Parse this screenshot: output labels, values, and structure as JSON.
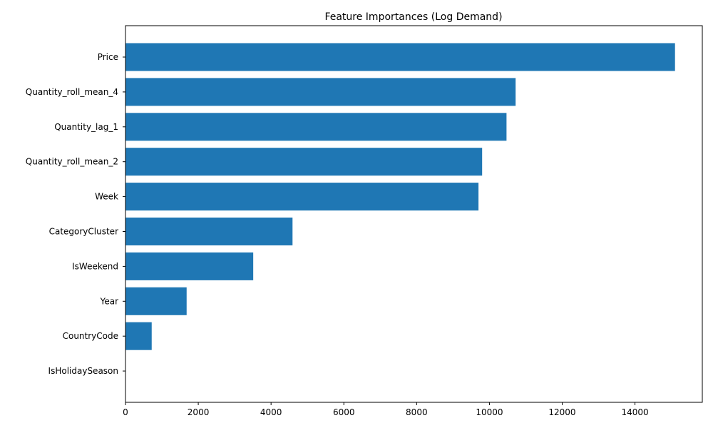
{
  "chart_data": {
    "type": "bar",
    "orientation": "horizontal",
    "title": "Feature Importances (Log Demand)",
    "xlabel": "",
    "ylabel": "",
    "categories": [
      "Price",
      "Quantity_roll_mean_4",
      "Quantity_lag_1",
      "Quantity_roll_mean_2",
      "Week",
      "CategoryCluster",
      "IsWeekend",
      "Year",
      "CountryCode",
      "IsHolidaySeason"
    ],
    "values": [
      15100,
      10720,
      10470,
      9800,
      9700,
      4590,
      3510,
      1680,
      720,
      0
    ],
    "xlim": [
      0,
      15850
    ],
    "xticks": [
      0,
      2000,
      4000,
      6000,
      8000,
      10000,
      12000,
      14000
    ],
    "xtick_labels": [
      "0",
      "2000",
      "4000",
      "6000",
      "8000",
      "10000",
      "12000",
      "14000"
    ],
    "grid": false,
    "bar_color": "#1f77b4"
  }
}
